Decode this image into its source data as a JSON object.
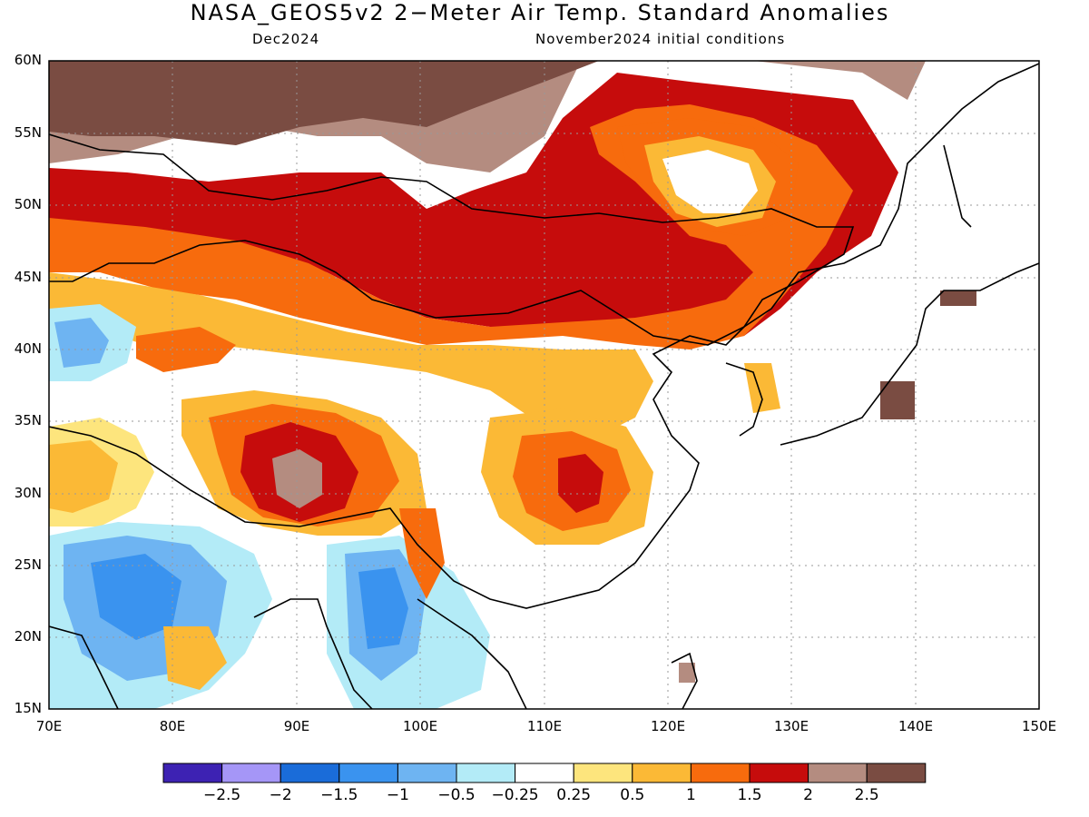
{
  "title": "NASA_GEOS5v2 2−Meter Air Temp. Standard Anomalies",
  "subtitle_left": "Dec2024",
  "subtitle_right": "November2024 initial conditions",
  "lat_labels": [
    "60N",
    "55N",
    "50N",
    "45N",
    "40N",
    "35N",
    "30N",
    "25N",
    "20N",
    "15N"
  ],
  "lon_labels": [
    "70E",
    "80E",
    "90E",
    "100E",
    "110E",
    "120E",
    "130E",
    "140E",
    "150E"
  ],
  "legend": {
    "colors": [
      "#3d22b3",
      "#a596f7",
      "#1a6cd9",
      "#3a93ef",
      "#6eb4f2",
      "#b3ebf7",
      "#ffffff",
      "#fde57d",
      "#fbb936",
      "#f76b0d",
      "#c60c0c",
      "#b48c80",
      "#7a4c42"
    ],
    "labels": [
      "−2.5",
      "−2",
      "−1.5",
      "−1",
      "−0.5",
      "−0.25",
      "0.25",
      "0.5",
      "1",
      "1.5",
      "2",
      "2.5"
    ]
  }
}
